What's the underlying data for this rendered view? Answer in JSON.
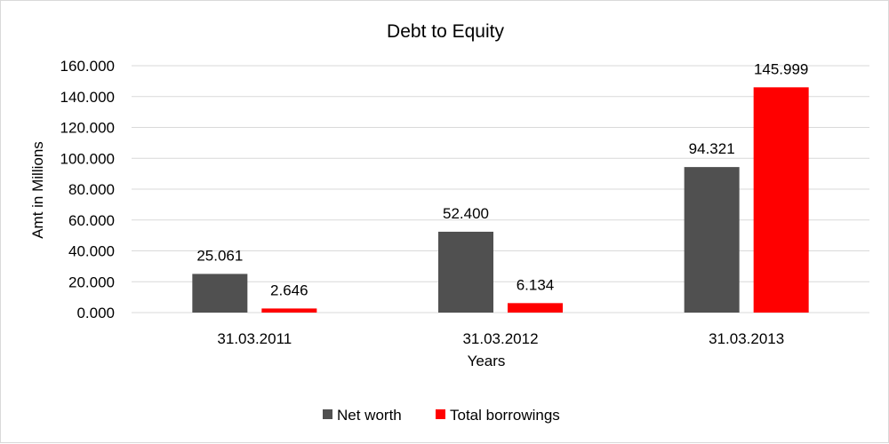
{
  "chart_data": {
    "type": "bar",
    "title": "Debt to Equity",
    "xlabel": "Years",
    "ylabel": "Amt in Millions",
    "categories": [
      "31.03.2011",
      "31.03.2012",
      "31.03.2013"
    ],
    "series": [
      {
        "name": "Net worth",
        "values": [
          25.061,
          52.4,
          94.321
        ],
        "labels": [
          "25.061",
          "52.400",
          "94.321"
        ],
        "color": "#505050"
      },
      {
        "name": "Total borrowings",
        "values": [
          2.646,
          6.134,
          145.999
        ],
        "labels": [
          "2.646",
          "6.134",
          "145.999"
        ],
        "color": "#ff0000"
      }
    ],
    "yticks": [
      "0.000",
      "20.000",
      "40.000",
      "60.000",
      "80.000",
      "100.000",
      "120.000",
      "140.000",
      "160.000"
    ],
    "ylim": [
      0,
      160
    ],
    "grid": true,
    "legend_position": "bottom"
  }
}
